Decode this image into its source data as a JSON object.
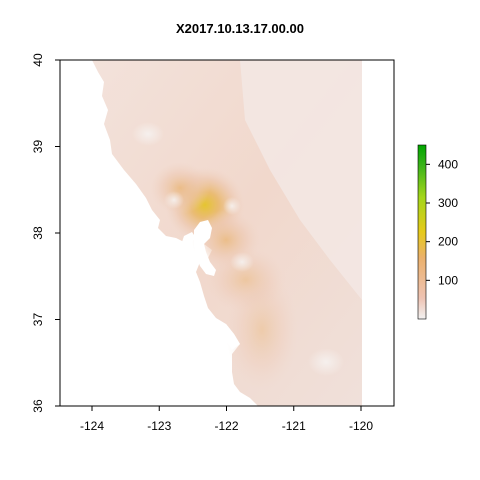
{
  "title": "X2017.10.13.17.00.00",
  "chart_data": {
    "type": "heatmap",
    "title": "X2017.10.13.17.00.00",
    "xlabel": "",
    "ylabel": "",
    "xlim": [
      -124.5,
      -119.5
    ],
    "ylim": [
      36,
      40
    ],
    "x_ticks": [
      {
        "value": -124,
        "label": "-124"
      },
      {
        "value": -123,
        "label": "-123"
      },
      {
        "value": -122,
        "label": "-122"
      },
      {
        "value": -121,
        "label": "-121"
      },
      {
        "value": -120,
        "label": "-120"
      }
    ],
    "y_ticks": [
      {
        "value": 36,
        "label": "36"
      },
      {
        "value": 37,
        "label": "37"
      },
      {
        "value": 38,
        "label": "38"
      },
      {
        "value": 39,
        "label": "39"
      },
      {
        "value": 40,
        "label": "40"
      }
    ],
    "legend": {
      "placement": "right",
      "range": [
        0,
        450
      ],
      "ticks": [
        {
          "value": 100,
          "label": "100"
        },
        {
          "value": 200,
          "label": "200"
        },
        {
          "value": 300,
          "label": "300"
        },
        {
          "value": 400,
          "label": "400"
        }
      ],
      "colors": [
        "#F2F2F2",
        "#EEC3B3",
        "#EBB16D",
        "#E6CA1A",
        "#A4D61A",
        "#1A9E1A",
        "#00A600"
      ]
    },
    "hotspots": [
      {
        "lon": -122.3,
        "lat": 38.3,
        "value": 220
      },
      {
        "lon": -122.1,
        "lat": 37.9,
        "value": 130
      },
      {
        "lon": -122.6,
        "lat": 38.4,
        "value": 110
      },
      {
        "lon": -121.8,
        "lat": 37.5,
        "value": 95
      }
    ],
    "background_value": 30
  }
}
